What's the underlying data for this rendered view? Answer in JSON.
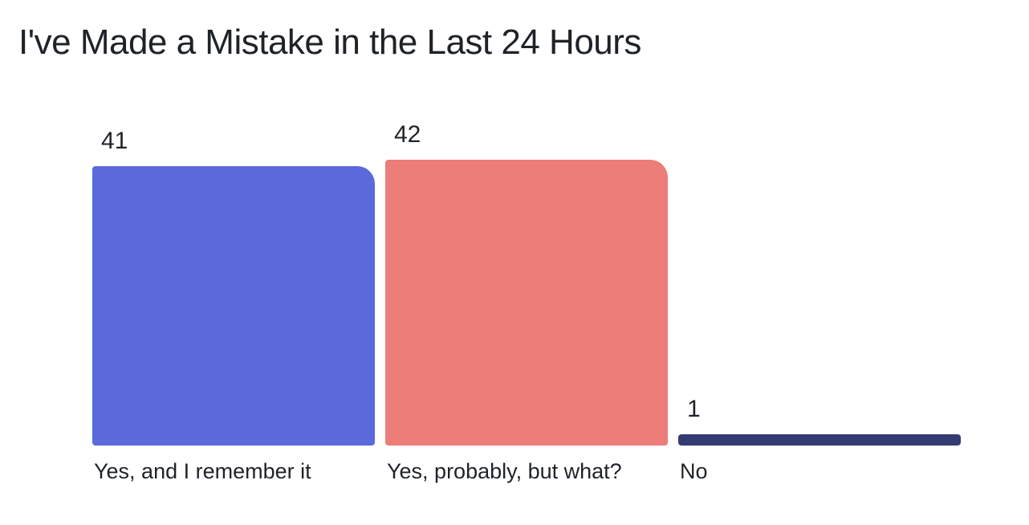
{
  "chart_data": {
    "type": "bar",
    "title": "I've Made a Mistake in the Last 24 Hours",
    "categories": [
      "Yes, and I remember it",
      "Yes, probably, but what?",
      "No"
    ],
    "values": [
      41,
      42,
      1
    ],
    "colors": [
      "#5A6ADB",
      "#ED7D78",
      "#343B72"
    ],
    "orientation": "vertical",
    "ylim": [
      0,
      42
    ],
    "grid": false,
    "legend": false,
    "xlabel": "",
    "ylabel": "",
    "value_labels_shown": true,
    "background_color": "#FFFFFF",
    "text_color": "#1F2328"
  }
}
